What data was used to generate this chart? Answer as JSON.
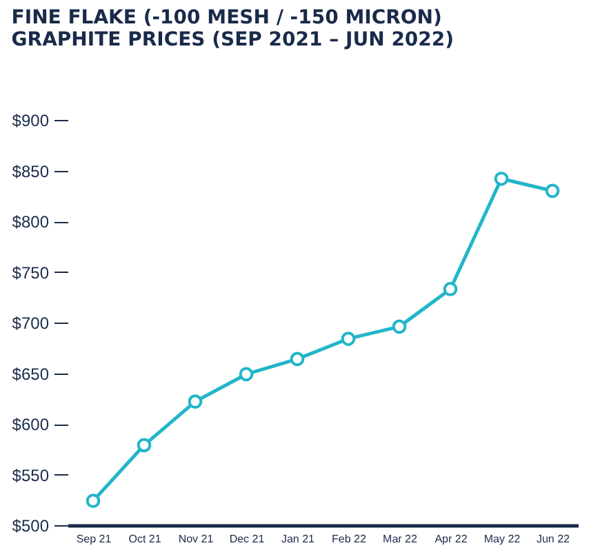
{
  "chart_data": {
    "type": "line",
    "title": [
      "FINE FLAKE (-100 MESH / -150 MICRON)",
      "GRAPHITE PRICES (SEP 2021 – JUN 2022)"
    ],
    "categories": [
      "Sep 21",
      "Oct 21",
      "Nov 21",
      "Dec 21",
      "Jan 21",
      "Feb 22",
      "Mar 22",
      "Apr 22",
      "May 22",
      "Jun 22"
    ],
    "series": [
      {
        "color": "#22b5c9",
        "values": [
          524,
          579,
          622,
          649,
          664,
          684,
          696,
          733,
          842,
          830
        ]
      }
    ],
    "ylim": [
      500,
      900
    ],
    "yticks": [
      {
        "value": 500,
        "label": "$500"
      },
      {
        "value": 550,
        "label": "$550"
      },
      {
        "value": 600,
        "label": "$600"
      },
      {
        "value": 650,
        "label": "$650"
      },
      {
        "value": 700,
        "label": "$700"
      },
      {
        "value": 750,
        "label": "$750"
      },
      {
        "value": 800,
        "label": "$800"
      },
      {
        "value": 850,
        "label": "$850"
      },
      {
        "value": 900,
        "label": "$900"
      }
    ],
    "grid": false,
    "marker": "circle",
    "line_style": "solid"
  }
}
